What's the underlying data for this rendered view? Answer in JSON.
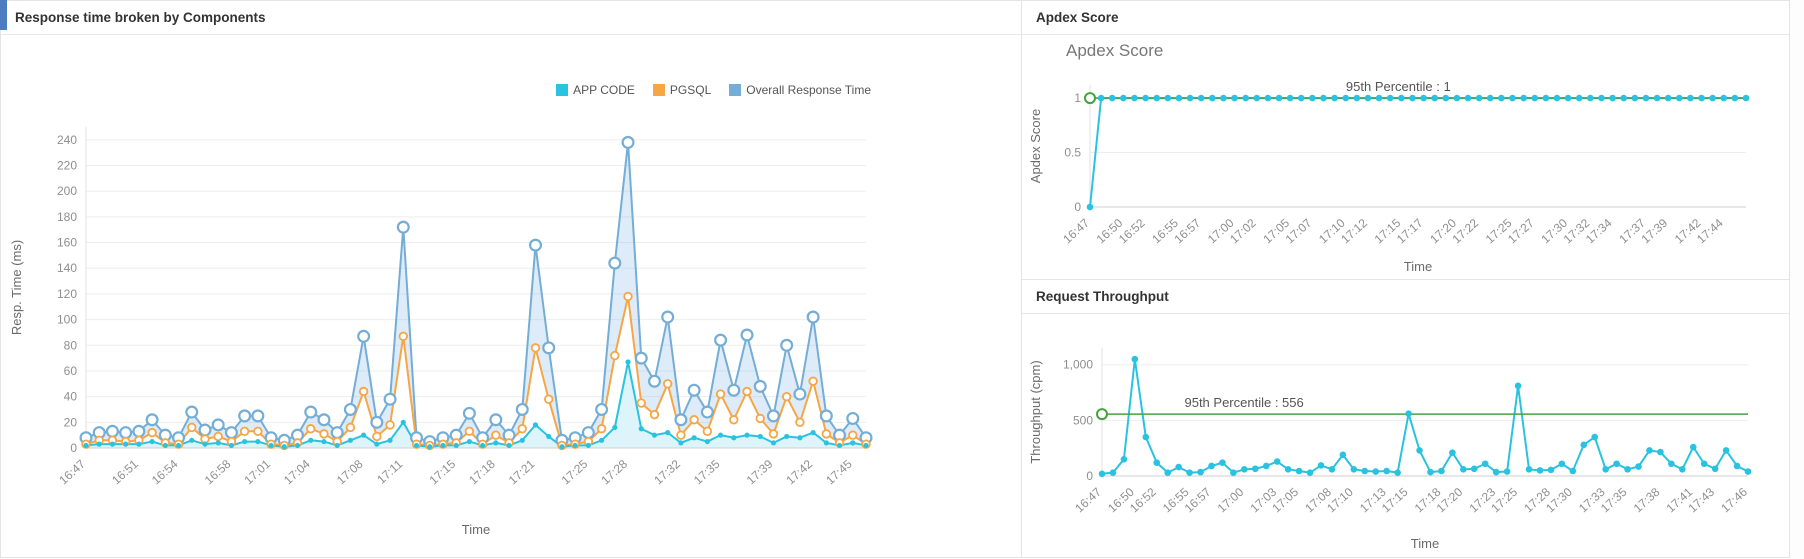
{
  "colors": {
    "app_code": "#29c3e1",
    "pgsql": "#f6a645",
    "overall": "#74add6",
    "percentile": "#44a340",
    "corner_accent": "#4d7cc0"
  },
  "panels": {
    "response": {
      "title": "Response time broken by Components"
    },
    "apdex": {
      "title": "Apdex Score"
    },
    "throughput": {
      "title": "Request Throughput"
    }
  },
  "chart_data": [
    {
      "id": "response-components",
      "type": "line",
      "title": "Response time broken by Components",
      "xlabel": "Time",
      "ylabel": "Resp. Time (ms)",
      "ylim": [
        0,
        250
      ],
      "yticks": [
        0,
        20,
        40,
        60,
        80,
        100,
        120,
        140,
        160,
        180,
        200,
        220,
        240
      ],
      "grid": true,
      "legend_position": "top",
      "x": [
        "16:47",
        "16:48",
        "16:49",
        "16:50",
        "16:51",
        "16:52",
        "16:53",
        "16:54",
        "16:55",
        "16:56",
        "16:57",
        "16:58",
        "16:59",
        "17:00",
        "17:01",
        "17:02",
        "17:03",
        "17:04",
        "17:05",
        "17:06",
        "17:07",
        "17:08",
        "17:09",
        "17:10",
        "17:11",
        "17:12",
        "17:13",
        "17:14",
        "17:15",
        "17:16",
        "17:17",
        "17:18",
        "17:19",
        "17:20",
        "17:21",
        "17:22",
        "17:23",
        "17:24",
        "17:25",
        "17:26",
        "17:27",
        "17:28",
        "17:29",
        "17:30",
        "17:31",
        "17:32",
        "17:33",
        "17:34",
        "17:35",
        "17:36",
        "17:37",
        "17:38",
        "17:39",
        "17:40",
        "17:41",
        "17:42",
        "17:43",
        "17:44",
        "17:45",
        "17:46"
      ],
      "xtick_labels": [
        "16:47",
        "16:51",
        "16:54",
        "16:58",
        "17:01",
        "17:04",
        "17:08",
        "17:11",
        "17:15",
        "17:18",
        "17:21",
        "17:25",
        "17:28",
        "17:32",
        "17:35",
        "17:39",
        "17:42",
        "17:45"
      ],
      "series": [
        {
          "name": "APP CODE",
          "color": "#29c3e1",
          "values": [
            2,
            3,
            3,
            3,
            3,
            5,
            2,
            2,
            6,
            3,
            4,
            2,
            5,
            5,
            2,
            1,
            2,
            6,
            5,
            2,
            6,
            10,
            3,
            6,
            20,
            2,
            1,
            2,
            2,
            5,
            2,
            4,
            2,
            6,
            18,
            9,
            1,
            2,
            2,
            6,
            16,
            67,
            15,
            10,
            12,
            4,
            8,
            5,
            10,
            8,
            10,
            9,
            4,
            9,
            8,
            12,
            4,
            2,
            4,
            2
          ]
        },
        {
          "name": "PGSQL",
          "color": "#f6a645",
          "values": [
            3,
            6,
            6,
            5,
            6,
            12,
            4,
            3,
            16,
            7,
            9,
            5,
            13,
            13,
            3,
            2,
            4,
            15,
            11,
            5,
            16,
            44,
            9,
            18,
            87,
            3,
            2,
            3,
            4,
            13,
            3,
            10,
            4,
            15,
            78,
            38,
            2,
            3,
            5,
            15,
            72,
            118,
            35,
            26,
            50,
            10,
            22,
            13,
            42,
            22,
            44,
            23,
            11,
            40,
            20,
            52,
            11,
            4,
            10,
            3
          ]
        },
        {
          "name": "Overall Response Time",
          "color": "#74add6",
          "values": [
            8,
            12,
            13,
            12,
            13,
            22,
            10,
            8,
            28,
            14,
            18,
            12,
            25,
            25,
            8,
            6,
            10,
            28,
            22,
            12,
            30,
            87,
            20,
            38,
            172,
            8,
            5,
            8,
            10,
            27,
            8,
            22,
            10,
            30,
            158,
            78,
            6,
            8,
            12,
            30,
            144,
            238,
            70,
            52,
            102,
            22,
            45,
            28,
            84,
            45,
            88,
            48,
            25,
            80,
            42,
            102,
            25,
            10,
            23,
            8
          ]
        }
      ]
    },
    {
      "id": "apdex-score",
      "type": "line",
      "title": "Apdex Score",
      "xlabel": "Time",
      "ylabel": "Apdex Score",
      "ylim": [
        0,
        1.12
      ],
      "yticks": [
        0,
        0.5,
        1
      ],
      "ytick_labels": [
        "0",
        "0.5",
        "1"
      ],
      "grid": true,
      "x": [
        "16:47",
        "16:48",
        "16:49",
        "16:50",
        "16:51",
        "16:52",
        "16:53",
        "16:54",
        "16:55",
        "16:56",
        "16:57",
        "16:58",
        "16:59",
        "17:00",
        "17:01",
        "17:02",
        "17:03",
        "17:04",
        "17:05",
        "17:06",
        "17:07",
        "17:08",
        "17:09",
        "17:10",
        "17:11",
        "17:12",
        "17:13",
        "17:14",
        "17:15",
        "17:16",
        "17:17",
        "17:18",
        "17:19",
        "17:20",
        "17:21",
        "17:22",
        "17:23",
        "17:24",
        "17:25",
        "17:26",
        "17:27",
        "17:28",
        "17:29",
        "17:30",
        "17:31",
        "17:32",
        "17:33",
        "17:34",
        "17:35",
        "17:36",
        "17:37",
        "17:38",
        "17:39",
        "17:40",
        "17:41",
        "17:42",
        "17:43",
        "17:44",
        "17:45",
        "17:46"
      ],
      "xtick_labels": [
        "16:47",
        "16:50",
        "16:52",
        "16:55",
        "16:57",
        "17:00",
        "17:02",
        "17:05",
        "17:07",
        "17:10",
        "17:12",
        "17:15",
        "17:17",
        "17:20",
        "17:22",
        "17:25",
        "17:27",
        "17:30",
        "17:32",
        "17:34",
        "17:37",
        "17:39",
        "17:42",
        "17:44"
      ],
      "series": [
        {
          "name": "Apdex Score",
          "color": "#29c3e1",
          "values": [
            0,
            1,
            1,
            1,
            1,
            1,
            1,
            1,
            1,
            1,
            1,
            1,
            1,
            1,
            1,
            1,
            1,
            1,
            1,
            1,
            1,
            1,
            1,
            1,
            1,
            1,
            1,
            1,
            1,
            1,
            1,
            1,
            1,
            1,
            1,
            1,
            1,
            1,
            1,
            1,
            1,
            1,
            1,
            1,
            1,
            1,
            1,
            1,
            1,
            1,
            1,
            1,
            1,
            1,
            1,
            1,
            1,
            1,
            1,
            1
          ]
        }
      ],
      "percentile": {
        "value": 1,
        "label": "95th Percentile : 1",
        "color": "#44a340"
      }
    },
    {
      "id": "request-throughput",
      "type": "line",
      "title": "Request Throughput",
      "xlabel": "Time",
      "ylabel": "Throughput (cpm)",
      "ylim": [
        0,
        1150
      ],
      "yticks": [
        0,
        500,
        1000
      ],
      "ytick_labels": [
        "0",
        "500",
        "1,000"
      ],
      "grid": true,
      "x": [
        "16:47",
        "16:48",
        "16:49",
        "16:50",
        "16:51",
        "16:52",
        "16:53",
        "16:54",
        "16:55",
        "16:56",
        "16:57",
        "16:58",
        "16:59",
        "17:00",
        "17:01",
        "17:02",
        "17:03",
        "17:04",
        "17:05",
        "17:06",
        "17:07",
        "17:08",
        "17:09",
        "17:10",
        "17:11",
        "17:12",
        "17:13",
        "17:14",
        "17:15",
        "17:16",
        "17:17",
        "17:18",
        "17:19",
        "17:20",
        "17:21",
        "17:22",
        "17:23",
        "17:24",
        "17:25",
        "17:26",
        "17:27",
        "17:28",
        "17:29",
        "17:30",
        "17:31",
        "17:32",
        "17:33",
        "17:34",
        "17:35",
        "17:36",
        "17:37",
        "17:38",
        "17:39",
        "17:40",
        "17:41",
        "17:42",
        "17:43",
        "17:44",
        "17:45",
        "17:46"
      ],
      "xtick_labels": [
        "16:47",
        "16:50",
        "16:52",
        "16:55",
        "16:57",
        "17:00",
        "17:03",
        "17:05",
        "17:08",
        "17:10",
        "17:13",
        "17:15",
        "17:18",
        "17:20",
        "17:23",
        "17:25",
        "17:28",
        "17:30",
        "17:33",
        "17:35",
        "17:38",
        "17:41",
        "17:43",
        "17:46"
      ],
      "series": [
        {
          "name": "Request Throughput",
          "color": "#29c3e1",
          "values": [
            20,
            30,
            150,
            1050,
            350,
            120,
            30,
            80,
            30,
            35,
            90,
            120,
            30,
            60,
            65,
            90,
            130,
            60,
            45,
            30,
            95,
            60,
            190,
            60,
            45,
            40,
            45,
            30,
            560,
            230,
            35,
            45,
            210,
            60,
            65,
            110,
            35,
            40,
            810,
            60,
            50,
            55,
            110,
            45,
            280,
            350,
            60,
            110,
            60,
            85,
            230,
            215,
            110,
            60,
            260,
            110,
            65,
            230,
            90,
            40
          ]
        }
      ],
      "percentile": {
        "value": 556,
        "label": "95th Percentile : 556",
        "color": "#44a340"
      }
    }
  ]
}
